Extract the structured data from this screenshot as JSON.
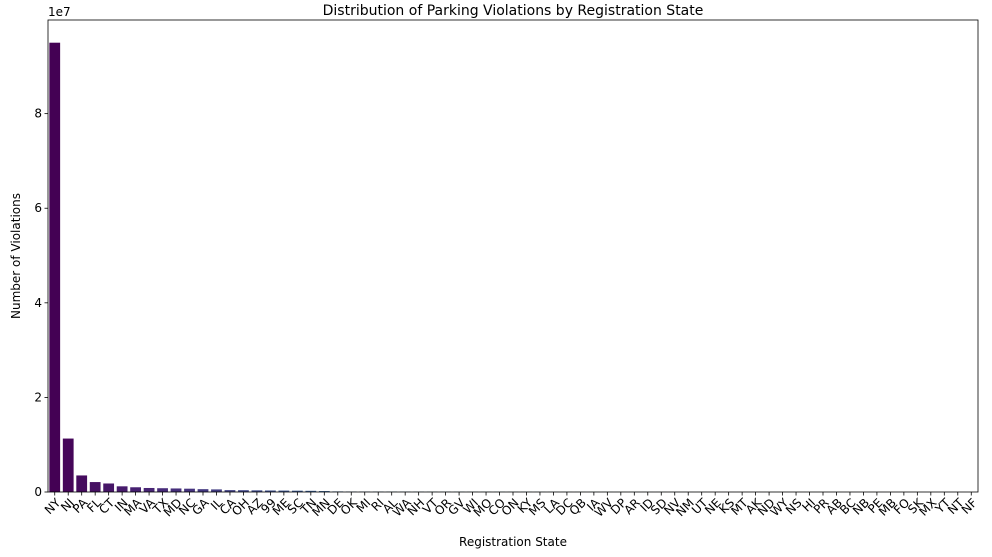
{
  "chart_data": {
    "type": "bar",
    "title": "Distribution of Parking Violations by Registration State",
    "xlabel": "Registration State",
    "ylabel": "Number of Violations",
    "y_offset_label": "1e7",
    "ylim": [
      0,
      99800000
    ],
    "yticks": [
      0,
      20000000,
      40000000,
      60000000,
      80000000
    ],
    "ytick_labels": [
      "0",
      "2",
      "4",
      "6",
      "8"
    ],
    "grid": false,
    "legend": "none",
    "categories": [
      "NY",
      "NJ",
      "PA",
      "FL",
      "CT",
      "IN",
      "MA",
      "VA",
      "TX",
      "MD",
      "NC",
      "GA",
      "IL",
      "CA",
      "OH",
      "AZ",
      "99",
      "ME",
      "SC",
      "TN",
      "MN",
      "DE",
      "OK",
      "MI",
      "RI",
      "AL",
      "WA",
      "NH",
      "VT",
      "OR",
      "GV",
      "WI",
      "MO",
      "CO",
      "ON",
      "KY",
      "MS",
      "LA",
      "DC",
      "QB",
      "IA",
      "WV",
      "DP",
      "AR",
      "ID",
      "SD",
      "NV",
      "NM",
      "UT",
      "NE",
      "KS",
      "MT",
      "AK",
      "ND",
      "WY",
      "NS",
      "HI",
      "PR",
      "AB",
      "BC",
      "NB",
      "PE",
      "MB",
      "FO",
      "SK",
      "MX",
      "YT",
      "NT",
      "NF"
    ],
    "values": [
      95000000,
      11300000,
      3500000,
      2100000,
      1800000,
      1200000,
      1000000,
      850000,
      800000,
      750000,
      700000,
      600000,
      550000,
      400000,
      380000,
      350000,
      320000,
      300000,
      280000,
      250000,
      200000,
      120000,
      100000,
      90000,
      85000,
      80000,
      70000,
      65000,
      60000,
      55000,
      50000,
      45000,
      42000,
      40000,
      38000,
      35000,
      30000,
      28000,
      26000,
      24000,
      22000,
      20000,
      18000,
      16000,
      15000,
      14000,
      13000,
      12000,
      11000,
      10000,
      9000,
      8500,
      8000,
      7500,
      7000,
      6500,
      6000,
      5500,
      5000,
      4500,
      4000,
      3500,
      3000,
      2500,
      2000,
      1800,
      1500,
      1200,
      1000
    ]
  }
}
